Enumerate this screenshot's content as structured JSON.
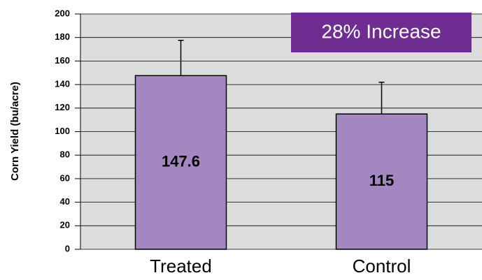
{
  "chart_data": {
    "type": "bar",
    "categories": [
      "Treated",
      "Control"
    ],
    "values": [
      147.6,
      115
    ],
    "errors": [
      30,
      27
    ],
    "color": "#a487c0",
    "ylabel": "Corn Yield (bu/acre)",
    "ylim": [
      0,
      200
    ],
    "yticks": [
      0,
      20,
      40,
      60,
      80,
      100,
      120,
      140,
      160,
      180,
      200
    ],
    "grid": true,
    "annotation": "28% Increase",
    "annotation_color": "#6f2c91"
  }
}
